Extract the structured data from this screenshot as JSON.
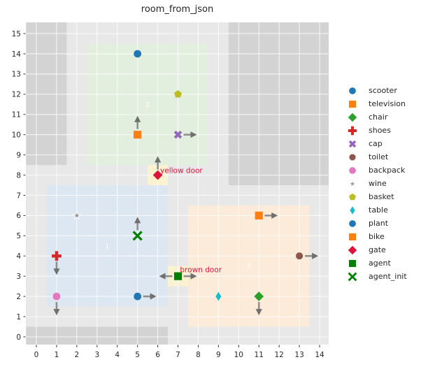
{
  "window": {
    "title": "room_from_json"
  },
  "chart_data": {
    "type": "scatter",
    "title": "room_from_json",
    "xlabel": "",
    "ylabel": "",
    "xlim": [
      -0.5,
      14.5
    ],
    "ylim": [
      -0.4,
      15.6
    ],
    "xticks": [
      0,
      1,
      2,
      3,
      4,
      5,
      6,
      7,
      8,
      9,
      10,
      11,
      12,
      13,
      14
    ],
    "yticks": [
      0,
      1,
      2,
      3,
      4,
      5,
      6,
      7,
      8,
      9,
      10,
      11,
      12,
      13,
      14,
      15
    ],
    "grid": true,
    "legend_position": "right",
    "background_color": "#e8e8e8",
    "grid_color": "rgba(255,255,255,0.75)",
    "wall_color": "#d3d3d3",
    "arrow_shaft_color": "#8f8f8f",
    "arrow_head_color": "#6f6f6f",
    "room_label_color": "#ffffff",
    "tick_color": "#262626",
    "walls": [
      {
        "name": "wall-top-left",
        "x0": -0.5,
        "x1": 1.5,
        "y0": 8.5,
        "y1": 15.6
      },
      {
        "name": "wall-top-right",
        "x0": 9.5,
        "x1": 14.5,
        "y0": 7.5,
        "y1": 15.6
      },
      {
        "name": "wall-bottom",
        "x0": -0.5,
        "x1": 6.5,
        "y0": -0.5,
        "y1": 0.5
      }
    ],
    "rooms": [
      {
        "label": "1",
        "x0": 0.5,
        "x1": 6.5,
        "y0": 1.5,
        "y1": 7.5,
        "color": "#dde7f2",
        "label_x": 3.5,
        "label_y": 4.5
      },
      {
        "label": "2",
        "x0": 2.5,
        "x1": 8.5,
        "y0": 8.5,
        "y1": 14.5,
        "color": "#e3efde",
        "label_x": 5.5,
        "label_y": 11.5
      },
      {
        "label": "3",
        "x0": 7.5,
        "x1": 13.5,
        "y0": 0.5,
        "y1": 6.5,
        "color": "#fdebd9",
        "label_x": 10.5,
        "label_y": 3.5
      }
    ],
    "doors": [
      {
        "label": "yellow door",
        "x": 6,
        "y": 8,
        "cell_color": "#fbf2d0",
        "text_x": 6.12,
        "text_y": 8.22,
        "text_color": "#dc143c"
      },
      {
        "label": "brown door",
        "x": 7,
        "y": 3,
        "cell_color": "#fbf2d0",
        "text_x": 7.1,
        "text_y": 3.32,
        "text_color": "#dc143c"
      }
    ],
    "objects": [
      {
        "label": "scooter",
        "marker": "circle",
        "color": "#1f77b4",
        "x": 5,
        "y": 14,
        "arrows": []
      },
      {
        "label": "television",
        "marker": "square",
        "color": "#ff7f0e",
        "x": 5,
        "y": 10,
        "arrows": [
          "up"
        ]
      },
      {
        "label": "chair",
        "marker": "diamond",
        "color": "#2ca02c",
        "x": 11,
        "y": 2,
        "arrows": [
          "down"
        ]
      },
      {
        "label": "shoes",
        "marker": "plus",
        "color": "#d62728",
        "x": 1,
        "y": 4,
        "arrows": [
          "down"
        ]
      },
      {
        "label": "cap",
        "marker": "x-filled",
        "color": "#9467bd",
        "x": 7,
        "y": 10,
        "arrows": [
          "right"
        ]
      },
      {
        "label": "toilet",
        "marker": "octagon",
        "color": "#8c564b",
        "x": 13,
        "y": 4,
        "arrows": [
          "right"
        ]
      },
      {
        "label": "backpack",
        "marker": "circle",
        "color": "#e377c2",
        "x": 1,
        "y": 2,
        "arrows": [
          "down"
        ]
      },
      {
        "label": "wine",
        "marker": "star",
        "color": "#9a9a9a",
        "x": 2,
        "y": 6,
        "arrows": []
      },
      {
        "label": "basket",
        "marker": "pentagon",
        "color": "#bcbd22",
        "x": 7,
        "y": 12,
        "arrows": []
      },
      {
        "label": "table",
        "marker": "thin-diamond",
        "color": "#17becf",
        "x": 9,
        "y": 2,
        "arrows": []
      },
      {
        "label": "plant",
        "marker": "circle",
        "color": "#1f77b4",
        "x": 5,
        "y": 2,
        "arrows": [
          "right"
        ]
      },
      {
        "label": "bike",
        "marker": "square",
        "color": "#ff7f0e",
        "x": 11,
        "y": 6,
        "arrows": [
          "right"
        ]
      },
      {
        "label": "gate",
        "marker": "diamond",
        "color": "#dc143c",
        "x": 6,
        "y": 8,
        "arrows": [
          "up"
        ]
      },
      {
        "label": "agent",
        "marker": "square",
        "color": "#008000",
        "x": 7,
        "y": 3,
        "arrows": [
          "left",
          "right"
        ]
      },
      {
        "label": "agent_init",
        "marker": "x-stroke",
        "color": "#008000",
        "x": 5,
        "y": 5,
        "arrows": [
          "up"
        ]
      }
    ]
  }
}
